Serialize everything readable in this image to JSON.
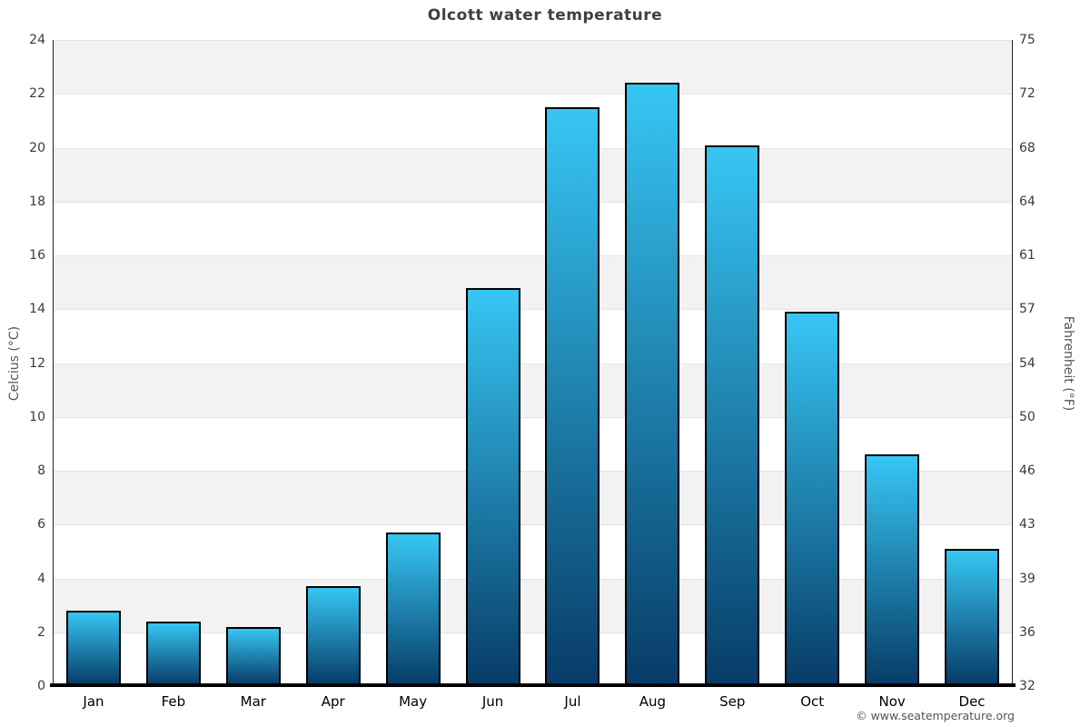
{
  "title": "Olcott water temperature",
  "y_axis_left": {
    "label": "Celcius (°C)"
  },
  "y_axis_right": {
    "label": "Fahrenheit (°F)"
  },
  "footer": {
    "copyright": "© www.seatemperature.org"
  },
  "colors": {
    "bar_gradient_top": "#37c6f4",
    "bar_gradient_bottom": "#073c67",
    "bar_border": "#000000",
    "band_shade": "#f2f2f2",
    "band_plain": "#ffffff",
    "gridline": "#e4e4e4",
    "axis_line": "#222222",
    "bottom_axis": "#000000",
    "title_text": "#404040",
    "tick_text": "#3a3a3a",
    "axis_label_text": "#555555",
    "copyright_text": "#555555"
  },
  "chart_data": {
    "type": "bar",
    "title": "Olcott water temperature",
    "categories": [
      "Jan",
      "Feb",
      "Mar",
      "Apr",
      "May",
      "Jun",
      "Jul",
      "Aug",
      "Sep",
      "Oct",
      "Nov",
      "Dec"
    ],
    "values": [
      2.8,
      2.4,
      2.2,
      3.7,
      5.7,
      14.8,
      21.5,
      22.4,
      20.1,
      13.9,
      8.6,
      5.1
    ],
    "unit": "°C",
    "xlabel": "",
    "ylabel": "Celcius (°C)",
    "ylabel_right": "Fahrenheit (°F)",
    "ylim": [
      0,
      24
    ],
    "yticks_left": [
      0,
      2,
      4,
      6,
      8,
      10,
      12,
      14,
      16,
      18,
      20,
      22,
      24
    ],
    "yticks_right": [
      32,
      36,
      39,
      43,
      46,
      50,
      54,
      57,
      61,
      64,
      68,
      72,
      75
    ],
    "grid": true,
    "band_fill_from_bottom": [
      "plain",
      "shade"
    ],
    "legend": false
  }
}
